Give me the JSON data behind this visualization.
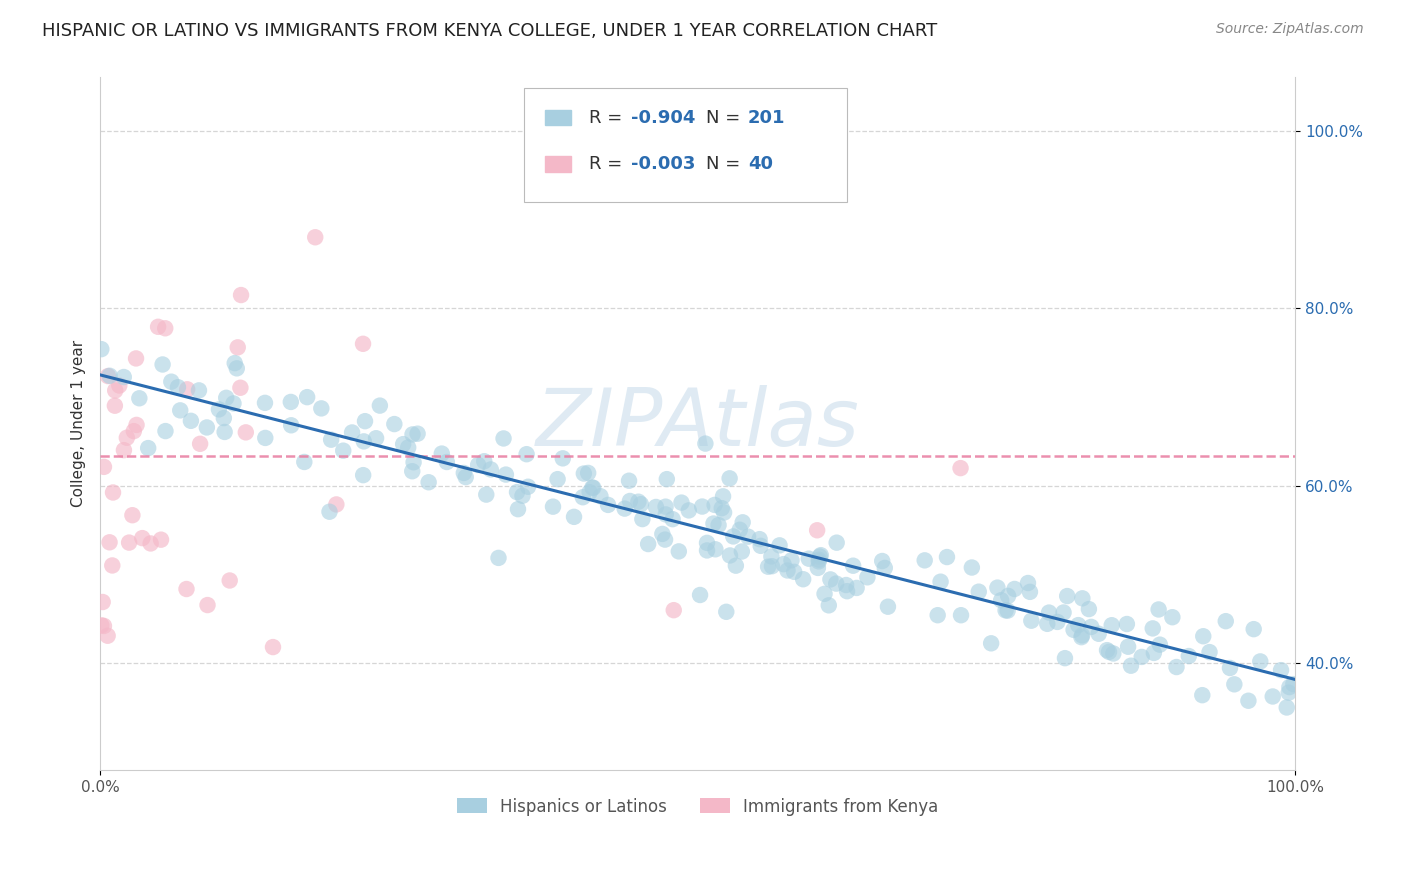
{
  "title": "HISPANIC OR LATINO VS IMMIGRANTS FROM KENYA COLLEGE, UNDER 1 YEAR CORRELATION CHART",
  "source": "Source: ZipAtlas.com",
  "ylabel": "College, Under 1 year",
  "xlim": [
    0.0,
    1.0
  ],
  "ylim": [
    0.28,
    1.06
  ],
  "y_tick_labels": [
    "40.0%",
    "60.0%",
    "80.0%",
    "100.0%"
  ],
  "y_tick_values": [
    0.4,
    0.6,
    0.8,
    1.0
  ],
  "blue_R": "-0.904",
  "blue_N": "201",
  "pink_R": "-0.003",
  "pink_N": "40",
  "blue_scatter_color": "#a8cfe0",
  "pink_scatter_color": "#f4b8c8",
  "blue_line_color": "#2b6cb0",
  "pink_line_color": "#e87ca0",
  "legend_label_blue": "Hispanics or Latinos",
  "legend_label_pink": "Immigrants from Kenya",
  "watermark": "ZIPAtlas",
  "title_fontsize": 13,
  "axis_label_fontsize": 11,
  "tick_fontsize": 11,
  "source_fontsize": 10,
  "background_color": "#ffffff",
  "grid_color": "#cccccc",
  "blue_line_start_y": 0.725,
  "blue_line_end_y": 0.382,
  "pink_line_y": 0.634
}
